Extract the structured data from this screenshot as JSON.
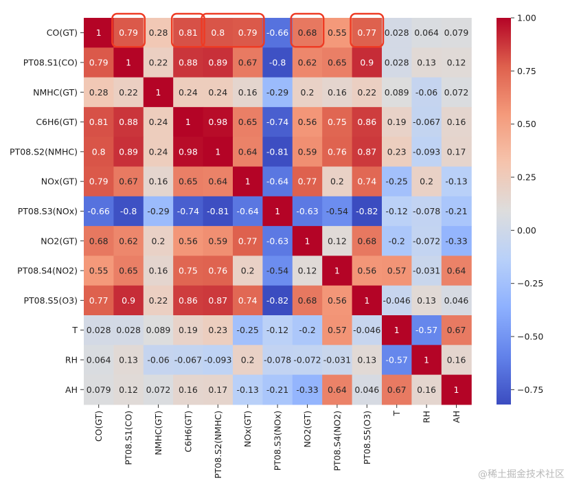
{
  "chart_data": {
    "type": "heatmap",
    "title": "",
    "xlabel": "",
    "ylabel": "",
    "labels": [
      "CO(GT)",
      "PT08.S1(CO)",
      "NMHC(GT)",
      "C6H6(GT)",
      "PT08.S2(NMHC)",
      "NOx(GT)",
      "PT08.S3(NOx)",
      "NO2(GT)",
      "PT08.S4(NO2)",
      "PT08.S5(O3)",
      "T",
      "RH",
      "AH"
    ],
    "values": [
      [
        1,
        0.79,
        0.28,
        0.81,
        0.8,
        0.79,
        -0.66,
        0.68,
        0.55,
        0.77,
        0.028,
        0.064,
        0.079
      ],
      [
        0.79,
        1,
        0.22,
        0.88,
        0.89,
        0.67,
        -0.8,
        0.62,
        0.65,
        0.9,
        0.028,
        0.13,
        0.12
      ],
      [
        0.28,
        0.22,
        1,
        0.24,
        0.24,
        0.16,
        -0.29,
        0.2,
        0.16,
        0.22,
        0.089,
        -0.06,
        0.072
      ],
      [
        0.81,
        0.88,
        0.24,
        1,
        0.98,
        0.65,
        -0.74,
        0.56,
        0.75,
        0.86,
        0.19,
        -0.067,
        0.16
      ],
      [
        0.8,
        0.89,
        0.24,
        0.98,
        1,
        0.64,
        -0.81,
        0.59,
        0.76,
        0.87,
        0.23,
        -0.093,
        0.17
      ],
      [
        0.79,
        0.67,
        0.16,
        0.65,
        0.64,
        1,
        -0.64,
        0.77,
        0.2,
        0.74,
        -0.25,
        0.2,
        -0.13
      ],
      [
        -0.66,
        -0.8,
        -0.29,
        -0.74,
        -0.81,
        -0.64,
        1,
        -0.63,
        -0.54,
        -0.82,
        -0.12,
        -0.078,
        -0.21
      ],
      [
        0.68,
        0.62,
        0.2,
        0.56,
        0.59,
        0.77,
        -0.63,
        1,
        0.12,
        0.68,
        -0.2,
        -0.072,
        -0.33
      ],
      [
        0.55,
        0.65,
        0.16,
        0.75,
        0.76,
        0.2,
        -0.54,
        0.12,
        1,
        0.56,
        0.57,
        -0.031,
        0.64
      ],
      [
        0.77,
        0.9,
        0.22,
        0.86,
        0.87,
        0.74,
        -0.82,
        0.68,
        0.56,
        1,
        -0.046,
        0.13,
        0.046
      ],
      [
        0.028,
        0.028,
        0.089,
        0.19,
        0.23,
        -0.25,
        -0.12,
        -0.2,
        0.57,
        -0.046,
        1,
        -0.57,
        0.67
      ],
      [
        0.064,
        0.13,
        -0.06,
        -0.067,
        -0.093,
        0.2,
        -0.078,
        -0.072,
        -0.031,
        0.13,
        -0.57,
        1,
        0.16
      ],
      [
        0.079,
        0.12,
        0.072,
        0.16,
        0.17,
        -0.13,
        -0.21,
        -0.33,
        0.64,
        0.046,
        0.67,
        0.16,
        1
      ]
    ],
    "value_labels": [
      [
        "1",
        "0.79",
        "0.28",
        "0.81",
        "0.8",
        "0.79",
        "-0.66",
        "0.68",
        "0.55",
        "0.77",
        "0.028",
        "0.064",
        "0.079"
      ],
      [
        "0.79",
        "1",
        "0.22",
        "0.88",
        "0.89",
        "0.67",
        "-0.8",
        "0.62",
        "0.65",
        "0.9",
        "0.028",
        "0.13",
        "0.12"
      ],
      [
        "0.28",
        "0.22",
        "1",
        "0.24",
        "0.24",
        "0.16",
        "-0.29",
        "0.2",
        "0.16",
        "0.22",
        "0.089",
        "-0.06",
        "0.072"
      ],
      [
        "0.81",
        "0.88",
        "0.24",
        "1",
        "0.98",
        "0.65",
        "-0.74",
        "0.56",
        "0.75",
        "0.86",
        "0.19",
        "-0.067",
        "0.16"
      ],
      [
        "0.8",
        "0.89",
        "0.24",
        "0.98",
        "1",
        "0.64",
        "-0.81",
        "0.59",
        "0.76",
        "0.87",
        "0.23",
        "-0.093",
        "0.17"
      ],
      [
        "0.79",
        "0.67",
        "0.16",
        "0.65",
        "0.64",
        "1",
        "-0.64",
        "0.77",
        "0.2",
        "0.74",
        "-0.25",
        "0.2",
        "-0.13"
      ],
      [
        "-0.66",
        "-0.8",
        "-0.29",
        "-0.74",
        "-0.81",
        "-0.64",
        "1",
        "-0.63",
        "-0.54",
        "-0.82",
        "-0.12",
        "-0.078",
        "-0.21"
      ],
      [
        "0.68",
        "0.62",
        "0.2",
        "0.56",
        "0.59",
        "0.77",
        "-0.63",
        "1",
        "0.12",
        "0.68",
        "-0.2",
        "-0.072",
        "-0.33"
      ],
      [
        "0.55",
        "0.65",
        "0.16",
        "0.75",
        "0.76",
        "0.2",
        "-0.54",
        "0.12",
        "1",
        "0.56",
        "0.57",
        "-0.031",
        "0.64"
      ],
      [
        "0.77",
        "0.9",
        "0.22",
        "0.86",
        "0.87",
        "0.74",
        "-0.82",
        "0.68",
        "0.56",
        "1",
        "-0.046",
        "0.13",
        "0.046"
      ],
      [
        "0.028",
        "0.028",
        "0.089",
        "0.19",
        "0.23",
        "-0.25",
        "-0.12",
        "-0.2",
        "0.57",
        "-0.046",
        "1",
        "-0.57",
        "0.67"
      ],
      [
        "0.064",
        "0.13",
        "-0.06",
        "-0.067",
        "-0.093",
        "0.2",
        "-0.078",
        "-0.072",
        "-0.031",
        "0.13",
        "-0.57",
        "1",
        "0.16"
      ],
      [
        "0.079",
        "0.12",
        "0.072",
        "0.16",
        "0.17",
        "-0.13",
        "-0.21",
        "-0.33",
        "0.64",
        "0.046",
        "0.67",
        "0.16",
        "1"
      ]
    ],
    "colormap": "coolwarm",
    "color_range": [
      -0.82,
      1
    ],
    "colorbar_ticks": [
      1.0,
      0.75,
      0.5,
      0.25,
      0.0,
      -0.25,
      -0.5,
      -0.75
    ],
    "colorbar_tick_labels": [
      "1.00",
      "0.75",
      "0.50",
      "0.25",
      "0.00",
      "−0.25",
      "−0.50",
      "−0.75"
    ],
    "highlighted_cells": [
      {
        "row": 0,
        "cols": [
          1,
          1
        ]
      },
      {
        "row": 0,
        "cols": [
          3,
          3
        ]
      },
      {
        "row": 0,
        "cols": [
          4,
          5
        ]
      },
      {
        "row": 0,
        "cols": [
          7,
          7
        ]
      },
      {
        "row": 0,
        "cols": [
          9,
          9
        ]
      }
    ],
    "highlight_color": "#ee3b24"
  },
  "watermark": "@稀土掘金技术社区"
}
